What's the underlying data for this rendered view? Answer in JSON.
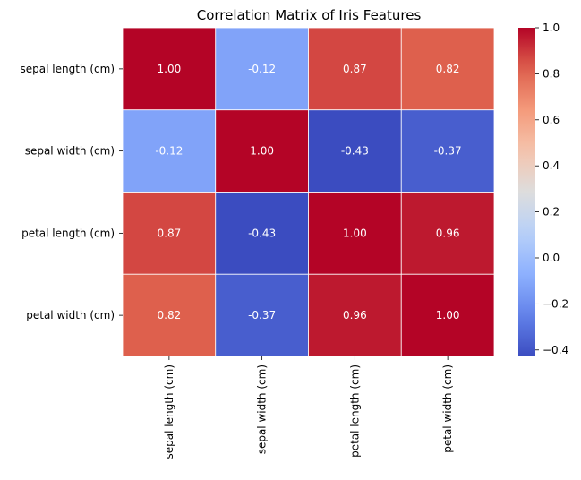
{
  "chart_data": {
    "type": "heatmap",
    "title": "Correlation Matrix of Iris Features",
    "xlabel": "",
    "ylabel": "",
    "categories": [
      "sepal length (cm)",
      "sepal width (cm)",
      "petal length (cm)",
      "petal width (cm)"
    ],
    "values": [
      [
        1.0,
        -0.12,
        0.87,
        0.82
      ],
      [
        -0.12,
        1.0,
        -0.43,
        -0.37
      ],
      [
        0.87,
        -0.43,
        1.0,
        0.96
      ],
      [
        0.82,
        -0.37,
        0.96,
        1.0
      ]
    ],
    "value_labels": [
      [
        "1.00",
        "-0.12",
        "0.87",
        "0.82"
      ],
      [
        "-0.12",
        "1.00",
        "-0.43",
        "-0.37"
      ],
      [
        "0.87",
        "-0.43",
        "1.00",
        "0.96"
      ],
      [
        "0.82",
        "-0.37",
        "0.96",
        "1.00"
      ]
    ],
    "colorbar": {
      "colormap": "coolwarm",
      "range": [
        -0.4281,
        1.0
      ],
      "ticks": [
        -0.4,
        -0.2,
        0.0,
        0.2,
        0.4,
        0.6,
        0.8,
        1.0
      ],
      "tick_labels": [
        "−0.4",
        "−0.2",
        "0.0",
        "0.2",
        "0.4",
        "0.6",
        "0.8",
        "1.0"
      ]
    },
    "grid": false,
    "cell_border_color": "#ffffff",
    "annotation_color": "#ffffff"
  }
}
